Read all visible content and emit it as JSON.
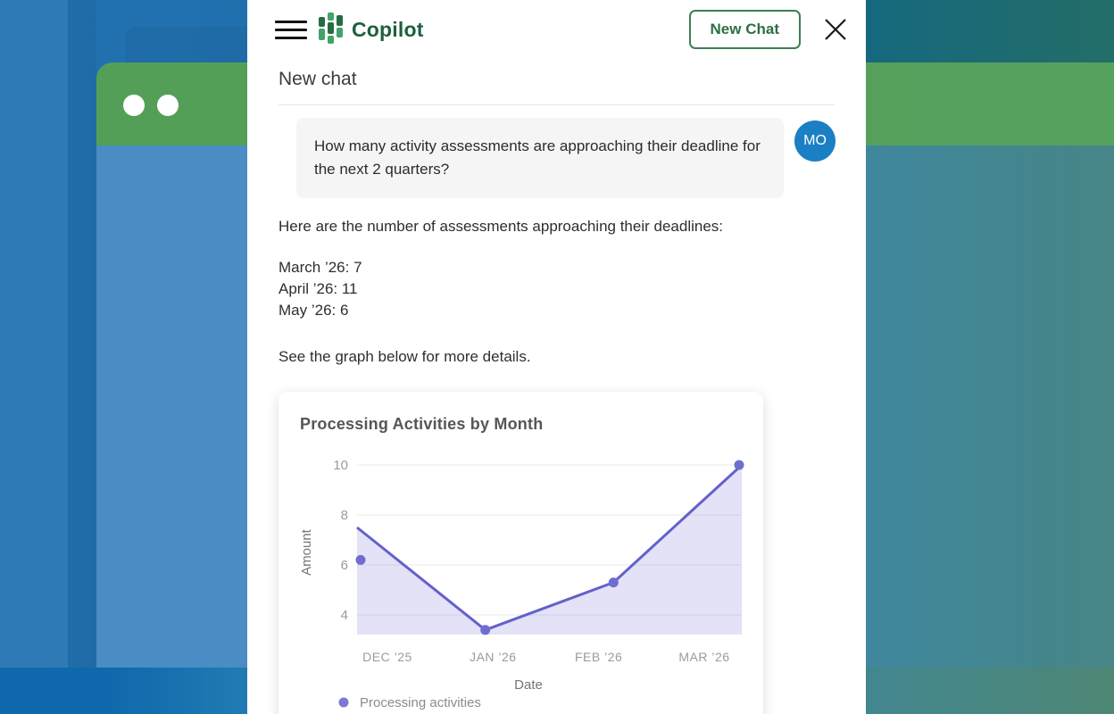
{
  "header": {
    "app_name": "Copilot",
    "new_chat_button": "New Chat"
  },
  "page": {
    "title": "New chat"
  },
  "chat": {
    "user_message": {
      "text": "How many activity assessments are approaching their deadline for the next 2 quarters?",
      "avatar_initials": "MO"
    },
    "assistant_message": {
      "intro": "Here are the number of assessments approaching their deadlines:",
      "stats": [
        "March ’26: 7",
        "April ’26: 11",
        "May ’26: 6"
      ],
      "outro": "See the graph below for more details."
    }
  },
  "chart_data": {
    "type": "area",
    "title": "Processing Activities by Month",
    "x": [
      "DEC ’25",
      "JAN ’26",
      "FEB ’26",
      "MAR ’26"
    ],
    "values": [
      6.2,
      3.4,
      5.3,
      10
    ],
    "line_start_value": 7.5,
    "xlabel": "Date",
    "ylabel": "Amount",
    "yticks": [
      4,
      6,
      8,
      10
    ],
    "ylim": [
      3.2,
      10.2
    ],
    "grid": true,
    "legend": [
      {
        "label": "Processing activities",
        "color": "#7b79d3"
      }
    ],
    "legend_position": "bottom-left",
    "colors": {
      "line": "#6361cb",
      "fill": "rgba(99,97,203,0.18)",
      "dot": "#6f6dd0",
      "gridline": "#e9e9e9",
      "tick_text": "#9b9b9b",
      "axis_text": "#757575",
      "legend_text": "#8c8c8c"
    }
  },
  "background": {
    "accent_green": "#55a05c",
    "accent_blue": "#2272b2",
    "accent_teal": "#16687e"
  }
}
